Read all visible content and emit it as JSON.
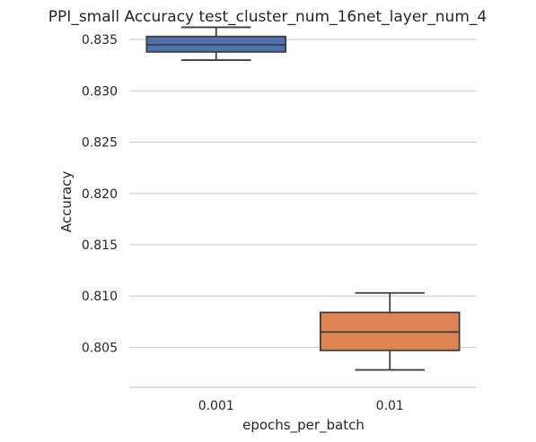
{
  "chart_data": {
    "type": "box",
    "title": "PPI_small Accuracy test_cluster_num_16net_layer_num_4",
    "xlabel": "epochs_per_batch",
    "ylabel": "Accuracy",
    "categories": [
      "0.001",
      "0.01"
    ],
    "yticks": [
      "0.805",
      "0.810",
      "0.815",
      "0.820",
      "0.825",
      "0.830",
      "0.835"
    ],
    "ylim": [
      0.8011,
      0.8365
    ],
    "grid": "horizontal",
    "boxes": [
      {
        "category": "0.001",
        "whisker_low": 0.833,
        "q1": 0.8338,
        "median": 0.8345,
        "q3": 0.8353,
        "whisker_high": 0.8362,
        "color": "#4c72b0"
      },
      {
        "category": "0.01",
        "whisker_low": 0.8028,
        "q1": 0.8047,
        "median": 0.8065,
        "q3": 0.8084,
        "whisker_high": 0.8103,
        "color": "#dd8452"
      }
    ]
  }
}
